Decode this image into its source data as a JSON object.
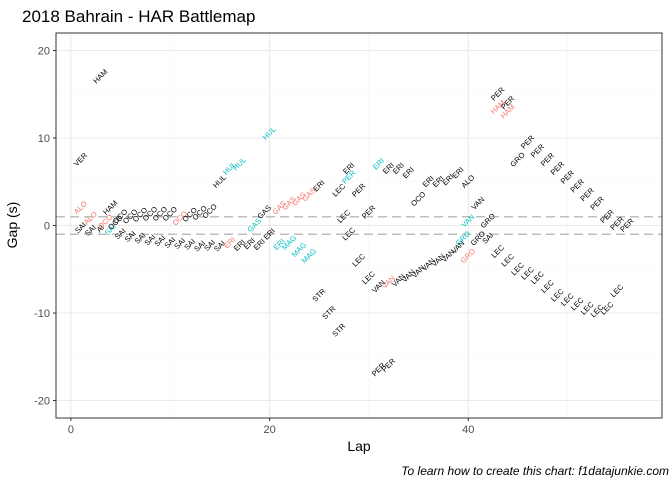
{
  "chart_data": {
    "type": "scatter",
    "title": "2018 Bahrain - HAR Battlemap",
    "xlabel": "Lap",
    "ylabel": "Gap (s)",
    "caption": "To learn how to create this chart: f1datajunkie.com",
    "xlim": [
      -1.5,
      59.5
    ],
    "ylim": [
      -22,
      22
    ],
    "x_ticks": [
      0,
      20,
      40
    ],
    "x_tick_labels": [
      "0",
      "20",
      "40"
    ],
    "y_ticks": [
      -20,
      -10,
      0,
      10,
      20
    ],
    "y_tick_labels": [
      "-20",
      "-10",
      "0",
      "10",
      "20"
    ],
    "grid": true,
    "reference_lines": [
      1,
      -1
    ],
    "colors": {
      "black": "#000000",
      "red": "#f8766d",
      "cyan": "#00bfc4",
      "panel_border": "#333333",
      "grid_major": "#ebebeb",
      "grid_minor": "#f5f5f5",
      "ref_line": "#bebebe"
    },
    "labels": [
      {
        "x": 1,
        "y": 7.5,
        "text": "VER",
        "color": "black"
      },
      {
        "x": 1,
        "y": 2,
        "text": "ALO",
        "color": "red"
      },
      {
        "x": 1,
        "y": -0.3,
        "text": "SAI",
        "color": "black"
      },
      {
        "x": 2,
        "y": 0.8,
        "text": "ALO",
        "color": "red"
      },
      {
        "x": 2,
        "y": -0.6,
        "text": "SAI",
        "color": "black"
      },
      {
        "x": 3,
        "y": 17,
        "text": "HAM",
        "color": "black"
      },
      {
        "x": 3,
        "y": -0.4,
        "text": "AI",
        "color": "black"
      },
      {
        "x": 3.5,
        "y": 0.4,
        "text": "OCO",
        "color": "red"
      },
      {
        "x": 4,
        "y": 2,
        "text": "HAM",
        "color": "black"
      },
      {
        "x": 4,
        "y": -0.5,
        "text": "SAI",
        "color": "cyan"
      },
      {
        "x": 4.5,
        "y": 0.3,
        "text": "OCO",
        "color": "black"
      },
      {
        "x": 5,
        "y": 1,
        "text": "OCO",
        "color": "black"
      },
      {
        "x": 5,
        "y": -1,
        "text": "SAI",
        "color": "black"
      },
      {
        "x": 6,
        "y": 1,
        "text": "OCO",
        "color": "black"
      },
      {
        "x": 6,
        "y": -1.3,
        "text": "SAI",
        "color": "black"
      },
      {
        "x": 7,
        "y": 1.2,
        "text": "OCO",
        "color": "black"
      },
      {
        "x": 7,
        "y": -1.5,
        "text": "SAI",
        "color": "black"
      },
      {
        "x": 8,
        "y": 1.3,
        "text": "OCO",
        "color": "black"
      },
      {
        "x": 8,
        "y": -1.7,
        "text": "SAI",
        "color": "black"
      },
      {
        "x": 9,
        "y": 1.3,
        "text": "OCO",
        "color": "black"
      },
      {
        "x": 9,
        "y": -1.8,
        "text": "SAI",
        "color": "black"
      },
      {
        "x": 10,
        "y": 1.3,
        "text": "OCO",
        "color": "black"
      },
      {
        "x": 10,
        "y": -2,
        "text": "SAI",
        "color": "black"
      },
      {
        "x": 11,
        "y": 0.8,
        "text": "OCO",
        "color": "red"
      },
      {
        "x": 11,
        "y": -2.1,
        "text": "SAI",
        "color": "black"
      },
      {
        "x": 12,
        "y": 1.2,
        "text": "OCO",
        "color": "black"
      },
      {
        "x": 12,
        "y": -2.2,
        "text": "SAI",
        "color": "black"
      },
      {
        "x": 13,
        "y": 1.4,
        "text": "OCO",
        "color": "black"
      },
      {
        "x": 13,
        "y": -2.4,
        "text": "SAI",
        "color": "black"
      },
      {
        "x": 14,
        "y": 1.6,
        "text": "OCO",
        "color": "black"
      },
      {
        "x": 14,
        "y": -2.3,
        "text": "SAI",
        "color": "black"
      },
      {
        "x": 15,
        "y": 5,
        "text": "HUL",
        "color": "black"
      },
      {
        "x": 15,
        "y": -2.4,
        "text": "SAI",
        "color": "black"
      },
      {
        "x": 16,
        "y": 6.5,
        "text": "HUL",
        "color": "cyan"
      },
      {
        "x": 16,
        "y": -2,
        "text": "ERI",
        "color": "red"
      },
      {
        "x": 17,
        "y": 7,
        "text": "HUL",
        "color": "cyan"
      },
      {
        "x": 17,
        "y": -2.3,
        "text": "ERI",
        "color": "black"
      },
      {
        "x": 18,
        "y": -2.1,
        "text": "ERI",
        "color": "black"
      },
      {
        "x": 18.5,
        "y": 0,
        "text": "GAS",
        "color": "cyan"
      },
      {
        "x": 19,
        "y": -2.2,
        "text": "ERI",
        "color": "black"
      },
      {
        "x": 19.5,
        "y": 1.5,
        "text": "GAS",
        "color": "black"
      },
      {
        "x": 20,
        "y": 10.5,
        "text": "HUL",
        "color": "cyan"
      },
      {
        "x": 20,
        "y": -1,
        "text": "ERI",
        "color": "black"
      },
      {
        "x": 21,
        "y": 2,
        "text": "GAS",
        "color": "red"
      },
      {
        "x": 21,
        "y": -2.2,
        "text": "ERI",
        "color": "cyan"
      },
      {
        "x": 22,
        "y": 2.5,
        "text": "GAS",
        "color": "red"
      },
      {
        "x": 22,
        "y": -2,
        "text": "MAG",
        "color": "cyan"
      },
      {
        "x": 23,
        "y": 3,
        "text": "GAS",
        "color": "red"
      },
      {
        "x": 23,
        "y": -2.8,
        "text": "MAG",
        "color": "cyan"
      },
      {
        "x": 24,
        "y": 3.5,
        "text": "GAS",
        "color": "red"
      },
      {
        "x": 24,
        "y": -3.5,
        "text": "MAG",
        "color": "cyan"
      },
      {
        "x": 25,
        "y": 4.5,
        "text": "ERI",
        "color": "black"
      },
      {
        "x": 25,
        "y": -8,
        "text": "STR",
        "color": "black"
      },
      {
        "x": 26,
        "y": -10,
        "text": "STR",
        "color": "black"
      },
      {
        "x": 27,
        "y": 4,
        "text": "LEC",
        "color": "black"
      },
      {
        "x": 27,
        "y": -12,
        "text": "STR",
        "color": "black"
      },
      {
        "x": 27.5,
        "y": 1,
        "text": "LEC",
        "color": "black"
      },
      {
        "x": 28,
        "y": 6.5,
        "text": "ERI",
        "color": "black"
      },
      {
        "x": 28,
        "y": 5.5,
        "text": "PER",
        "color": "cyan"
      },
      {
        "x": 28,
        "y": -1,
        "text": "LEC",
        "color": "black"
      },
      {
        "x": 29,
        "y": 4,
        "text": "PER",
        "color": "black"
      },
      {
        "x": 29,
        "y": -4,
        "text": "LEC",
        "color": "black"
      },
      {
        "x": 30,
        "y": 1.5,
        "text": "PER",
        "color": "black"
      },
      {
        "x": 30,
        "y": -6,
        "text": "LEC",
        "color": "black"
      },
      {
        "x": 31,
        "y": 7,
        "text": "ERI",
        "color": "cyan"
      },
      {
        "x": 31,
        "y": -7,
        "text": "VAN",
        "color": "black"
      },
      {
        "x": 31,
        "y": -16.5,
        "text": "PER",
        "color": "black"
      },
      {
        "x": 32,
        "y": 6.5,
        "text": "ERI",
        "color": "black"
      },
      {
        "x": 32,
        "y": -6.5,
        "text": "VAN",
        "color": "red"
      },
      {
        "x": 32,
        "y": -16,
        "text": "PER",
        "color": "black"
      },
      {
        "x": 33,
        "y": 6.5,
        "text": "ERI",
        "color": "black"
      },
      {
        "x": 33,
        "y": -6.3,
        "text": "VAN",
        "color": "black"
      },
      {
        "x": 34,
        "y": 6,
        "text": "ERI",
        "color": "black"
      },
      {
        "x": 34,
        "y": -5.8,
        "text": "VAN",
        "color": "black"
      },
      {
        "x": 35,
        "y": -5.3,
        "text": "VAN",
        "color": "black"
      },
      {
        "x": 35,
        "y": 3,
        "text": "OCO",
        "color": "black"
      },
      {
        "x": 36,
        "y": 5,
        "text": "ERI",
        "color": "black"
      },
      {
        "x": 36,
        "y": -4.5,
        "text": "VAN",
        "color": "black"
      },
      {
        "x": 37,
        "y": 5,
        "text": "ERI",
        "color": "black"
      },
      {
        "x": 37,
        "y": -4,
        "text": "VAN",
        "color": "black"
      },
      {
        "x": 38,
        "y": 5.2,
        "text": "ERI",
        "color": "black"
      },
      {
        "x": 38,
        "y": -3.5,
        "text": "VAN",
        "color": "black"
      },
      {
        "x": 39,
        "y": 6,
        "text": "ERI",
        "color": "black"
      },
      {
        "x": 39,
        "y": -2.5,
        "text": "VAN",
        "color": "black"
      },
      {
        "x": 39.5,
        "y": -1.5,
        "text": "GRO",
        "color": "cyan"
      },
      {
        "x": 40,
        "y": 5,
        "text": "ALO",
        "color": "black"
      },
      {
        "x": 40,
        "y": 0.5,
        "text": "VAN",
        "color": "cyan"
      },
      {
        "x": 40,
        "y": -3.5,
        "text": "GRO",
        "color": "red"
      },
      {
        "x": 41,
        "y": 2.5,
        "text": "VAN",
        "color": "black"
      },
      {
        "x": 41,
        "y": -1.5,
        "text": "GRO",
        "color": "black"
      },
      {
        "x": 42,
        "y": 0.5,
        "text": "GRO",
        "color": "black"
      },
      {
        "x": 42,
        "y": -1.5,
        "text": "SAI",
        "color": "black"
      },
      {
        "x": 43,
        "y": 15,
        "text": "PER",
        "color": "black"
      },
      {
        "x": 43,
        "y": 13.5,
        "text": "HAM",
        "color": "red"
      },
      {
        "x": 43,
        "y": -3,
        "text": "LEC",
        "color": "black"
      },
      {
        "x": 44,
        "y": 14,
        "text": "PER",
        "color": "black"
      },
      {
        "x": 44,
        "y": 13,
        "text": "HAM",
        "color": "red"
      },
      {
        "x": 44,
        "y": -4,
        "text": "LEC",
        "color": "black"
      },
      {
        "x": 45,
        "y": -5,
        "text": "LEC",
        "color": "black"
      },
      {
        "x": 45,
        "y": 7.5,
        "text": "GRO",
        "color": "black"
      },
      {
        "x": 46,
        "y": 9.5,
        "text": "PER",
        "color": "black"
      },
      {
        "x": 46,
        "y": -5.5,
        "text": "LEC",
        "color": "black"
      },
      {
        "x": 47,
        "y": 8.5,
        "text": "PER",
        "color": "black"
      },
      {
        "x": 47,
        "y": -6,
        "text": "LEC",
        "color": "black"
      },
      {
        "x": 48,
        "y": 7.5,
        "text": "PER",
        "color": "black"
      },
      {
        "x": 48,
        "y": -7,
        "text": "LEC",
        "color": "black"
      },
      {
        "x": 49,
        "y": 6.5,
        "text": "PER",
        "color": "black"
      },
      {
        "x": 49,
        "y": -8,
        "text": "LEC",
        "color": "black"
      },
      {
        "x": 50,
        "y": 5.5,
        "text": "PER",
        "color": "black"
      },
      {
        "x": 50,
        "y": -8.5,
        "text": "LEC",
        "color": "black"
      },
      {
        "x": 51,
        "y": 4.5,
        "text": "PER",
        "color": "black"
      },
      {
        "x": 51,
        "y": -9,
        "text": "LEC",
        "color": "black"
      },
      {
        "x": 52,
        "y": 3.5,
        "text": "PER",
        "color": "black"
      },
      {
        "x": 52,
        "y": -9.5,
        "text": "LEC",
        "color": "black"
      },
      {
        "x": 53,
        "y": 2.5,
        "text": "PER",
        "color": "black"
      },
      {
        "x": 53,
        "y": -9.8,
        "text": "LEC",
        "color": "black"
      },
      {
        "x": 54,
        "y": 1,
        "text": "PER",
        "color": "black"
      },
      {
        "x": 54,
        "y": -9.5,
        "text": "LEC",
        "color": "black"
      },
      {
        "x": 55,
        "y": 0.2,
        "text": "PER",
        "color": "black"
      },
      {
        "x": 55,
        "y": -7.5,
        "text": "LEC",
        "color": "black"
      },
      {
        "x": 56,
        "y": 0,
        "text": "PER",
        "color": "black"
      }
    ]
  }
}
